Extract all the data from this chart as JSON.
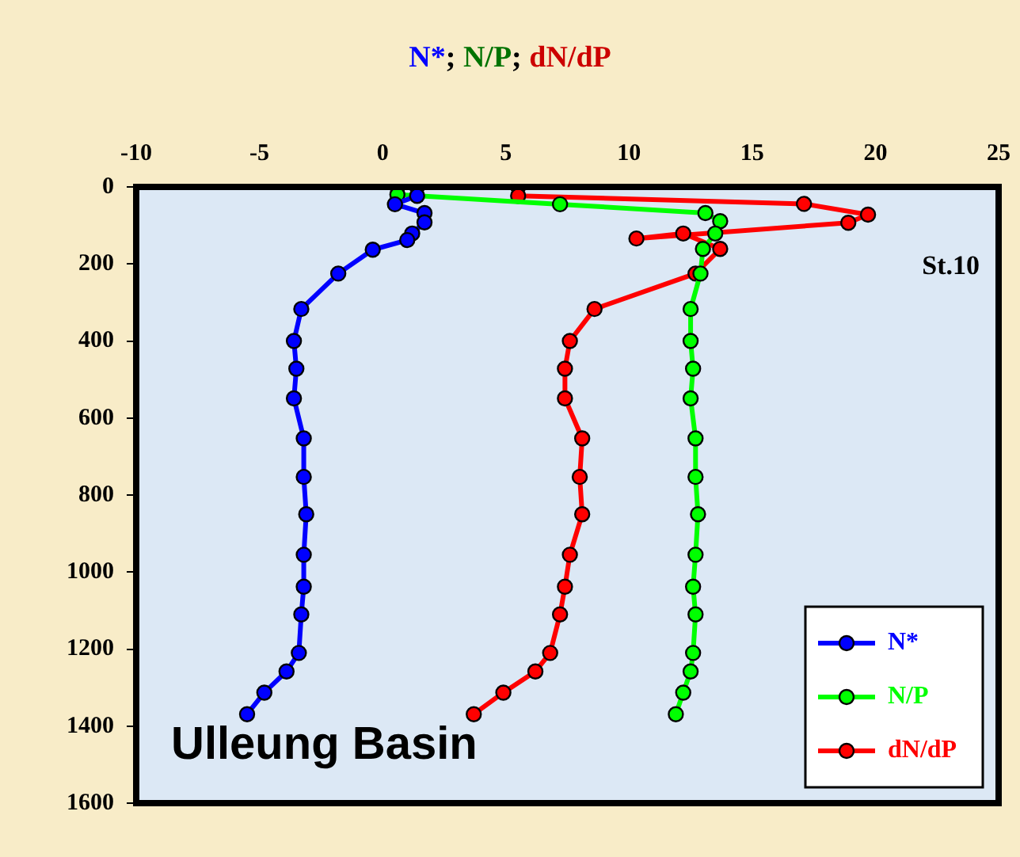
{
  "chart_data": {
    "type": "line",
    "title": "N*; N/P; dN/dP",
    "xlim": [
      -10,
      25
    ],
    "xticks": [
      -10,
      -5,
      0,
      5,
      10,
      15,
      20,
      25
    ],
    "ylim": [
      1600,
      0
    ],
    "yticks": [
      0,
      200,
      400,
      600,
      800,
      1000,
      1200,
      1400,
      1600
    ],
    "grid": false,
    "legend": "bottom right",
    "marker": "circle",
    "line_style": "solid",
    "annotations": [
      "St.10",
      "Ulleung Basin"
    ],
    "series": [
      {
        "name": "N*",
        "color": "#0000ff",
        "x": [
          1.4,
          1.4,
          0.5,
          1.7,
          1.7,
          1.2,
          1.0,
          -0.4,
          -1.8,
          -3.3,
          -3.6,
          -3.5,
          -3.6,
          -3.2,
          -3.2,
          -3.1,
          -3.2,
          -3.2,
          -3.3,
          -3.4,
          -3.9,
          -4.8,
          -5.5
        ],
        "values": [
          0,
          23,
          45,
          68,
          92,
          121,
          138,
          163,
          225,
          317,
          400,
          472,
          549,
          653,
          753,
          850,
          955,
          1038,
          1110,
          1210,
          1258,
          1313,
          1369
        ]
      },
      {
        "name": "N/P",
        "color": "#00ff00",
        "x": [
          0.6,
          0.6,
          7.2,
          13.1,
          13.7,
          13.5,
          13.0,
          12.9,
          12.5,
          12.5,
          12.6,
          12.5,
          12.7,
          12.7,
          12.8,
          12.7,
          12.6,
          12.7,
          12.6,
          12.5,
          12.2,
          11.9
        ],
        "values": [
          0,
          20,
          45,
          68,
          89,
          121,
          161,
          225,
          317,
          400,
          472,
          549,
          653,
          753,
          850,
          955,
          1038,
          1110,
          1210,
          1258,
          1313,
          1369
        ]
      },
      {
        "name": "dN/dP",
        "color": "#ff0000",
        "x": [
          5.5,
          5.5,
          17.1,
          19.7,
          18.9,
          10.3,
          12.2,
          13.7,
          12.7,
          8.6,
          7.6,
          7.4,
          7.4,
          8.1,
          8.0,
          8.1,
          7.6,
          7.4,
          7.2,
          6.8,
          6.2,
          4.9,
          3.7
        ],
        "values": [
          0,
          23,
          44,
          72,
          93,
          134,
          121,
          161,
          225,
          317,
          400,
          472,
          549,
          653,
          753,
          850,
          955,
          1038,
          1110,
          1210,
          1258,
          1313,
          1369
        ]
      }
    ]
  }
}
